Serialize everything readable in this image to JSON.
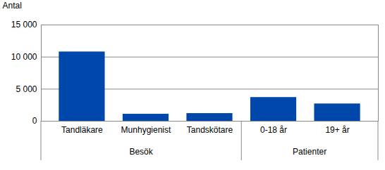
{
  "chart_data": {
    "type": "bar",
    "ylabel": "Antal",
    "categories": [
      "Tandläkare",
      "Munhygienist",
      "Tandskötare",
      "0-18 år",
      "19+ år"
    ],
    "groups": [
      "Besök",
      "Besök",
      "Besök",
      "Patienter",
      "Patienter"
    ],
    "values": [
      10800,
      1100,
      1200,
      3700,
      2700
    ],
    "color": "#0047ab",
    "ylim": [
      0,
      15000
    ],
    "yticks": [
      0,
      {
        "value": 5000,
        "label": "5 000"
      },
      {
        "value": 10000,
        "label": "10 000"
      },
      {
        "value": 15000,
        "label": "15 000"
      }
    ],
    "grid": true
  }
}
